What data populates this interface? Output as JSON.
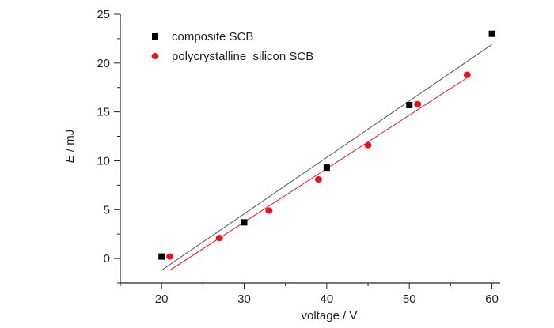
{
  "chart_data": {
    "type": "scatter",
    "title": "",
    "xlabel": "voltage / V",
    "ylabel": {
      "symbol": "E",
      "unit": " / mJ"
    },
    "xlim": [
      15,
      61
    ],
    "ylim": [
      -2.5,
      25
    ],
    "xticks": [
      20,
      30,
      40,
      50,
      60
    ],
    "yticks": [
      0,
      5,
      10,
      15,
      20,
      25
    ],
    "grid": false,
    "legend_position": "top-left",
    "series": [
      {
        "name": "composite SCB",
        "marker": "square",
        "color": "#000000",
        "points": [
          [
            20,
            0.2
          ],
          [
            30,
            3.7
          ],
          [
            40,
            9.3
          ],
          [
            50,
            15.7
          ],
          [
            60,
            23.0
          ]
        ],
        "fit": {
          "x": [
            20,
            60
          ],
          "y": [
            -1.2,
            21.9
          ],
          "color": "#555555"
        }
      },
      {
        "name": "polycrystalline  silicon SCB",
        "marker": "circle",
        "color": "#e8131b",
        "points": [
          [
            21,
            0.2
          ],
          [
            27,
            2.1
          ],
          [
            33,
            4.9
          ],
          [
            39,
            8.1
          ],
          [
            45,
            11.6
          ],
          [
            51,
            15.8
          ],
          [
            57,
            18.8
          ]
        ],
        "fit": {
          "x": [
            21,
            57
          ],
          "y": [
            -1.2,
            18.5
          ],
          "color": "#e8131b"
        }
      }
    ]
  }
}
